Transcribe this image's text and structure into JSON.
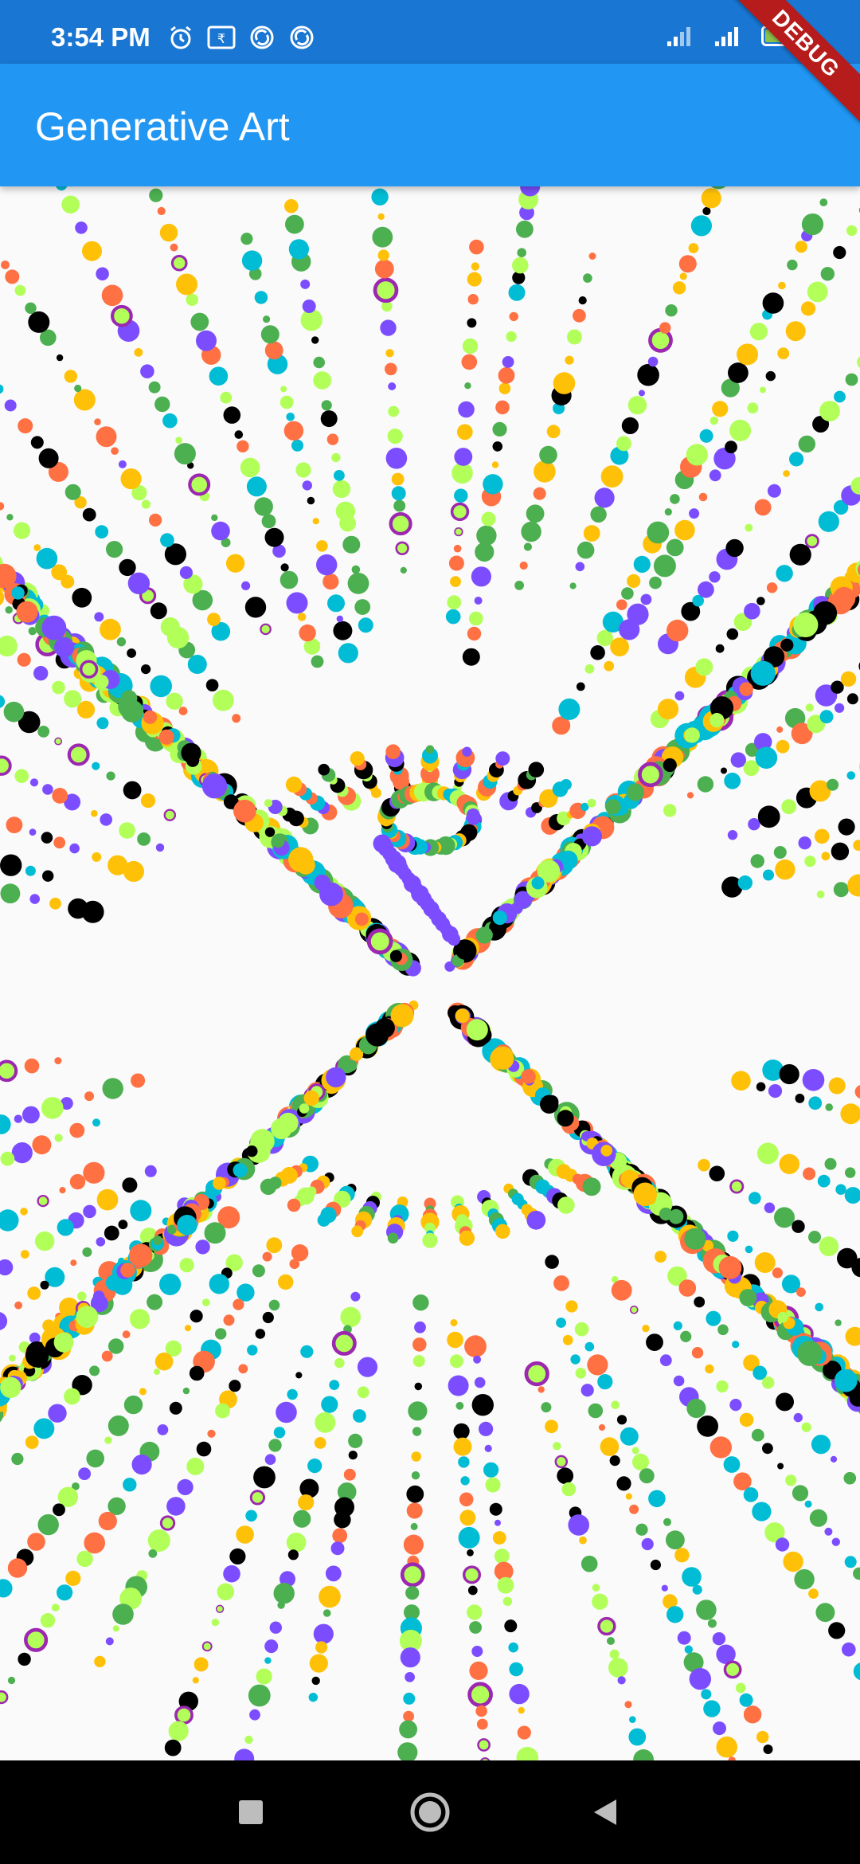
{
  "status_bar": {
    "time": "3:54 PM",
    "battery_level": "73",
    "left_icons": [
      "alarm-icon",
      "rupee-icon",
      "sync-icon",
      "sync-icon"
    ],
    "right_icons": [
      "signal-icon",
      "signal-icon",
      "battery-icon"
    ]
  },
  "debug_banner": {
    "label": "DEBUG",
    "color": "#b71c1c"
  },
  "app_bar": {
    "title": "Generative Art",
    "color": "#2196f3"
  },
  "colors": {
    "palette": [
      "#4caf50",
      "#7c4dff",
      "#00bcd4",
      "#ff7043",
      "#000000",
      "#ffc107",
      "#b2ff59",
      "#9c27b0"
    ],
    "status_bar": "#1976d2",
    "background": "#fafafa"
  },
  "nav_bar": {
    "buttons": [
      "recents-icon",
      "home-icon",
      "back-icon"
    ]
  }
}
